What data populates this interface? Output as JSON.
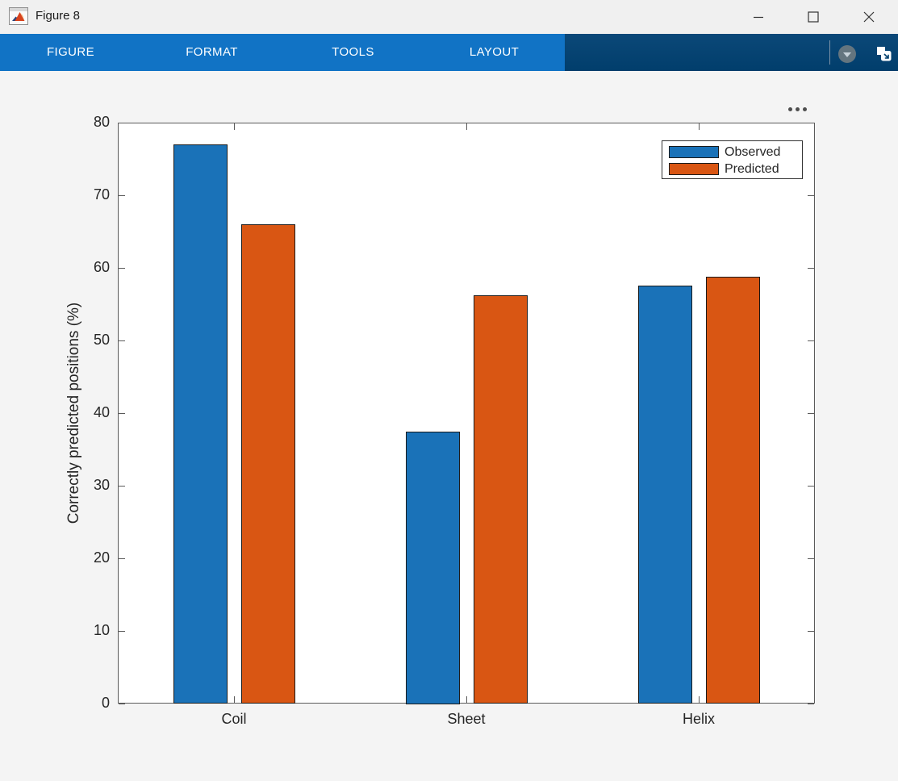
{
  "window": {
    "title": "Figure 8",
    "icon": "matlab-figure-icon"
  },
  "toolbar": {
    "tabs": [
      {
        "label": "FIGURE"
      },
      {
        "label": "FORMAT"
      },
      {
        "label": "TOOLS"
      },
      {
        "label": "LAYOUT"
      }
    ],
    "tab_background": "#1173c5",
    "right_background": "#023f6d",
    "dropdown_icon": "chevron-down-icon",
    "popout_icon": "undock-icon"
  },
  "axes_toolbar": {
    "more_icon": "ellipsis-icon"
  },
  "chart_data": {
    "type": "bar",
    "title": "",
    "categories": [
      "Coil",
      "Sheet",
      "Helix"
    ],
    "series": [
      {
        "name": "Observed",
        "color": "#1a72b8",
        "values": [
          77,
          37.5,
          57.6
        ]
      },
      {
        "name": "Predicted",
        "color": "#d95613",
        "values": [
          66,
          56.2,
          58.8
        ]
      }
    ],
    "xlabel": "",
    "ylabel": "Correctly predicted positions (%)",
    "ylim": [
      0,
      80
    ],
    "yticks": [
      0,
      10,
      20,
      30,
      40,
      50,
      60,
      70,
      80
    ],
    "grid": false,
    "legend_position": "top-right",
    "bar_edge_color": "#1a1a1a",
    "axis_color": "#5a5a5a",
    "text_color": "#262626"
  }
}
